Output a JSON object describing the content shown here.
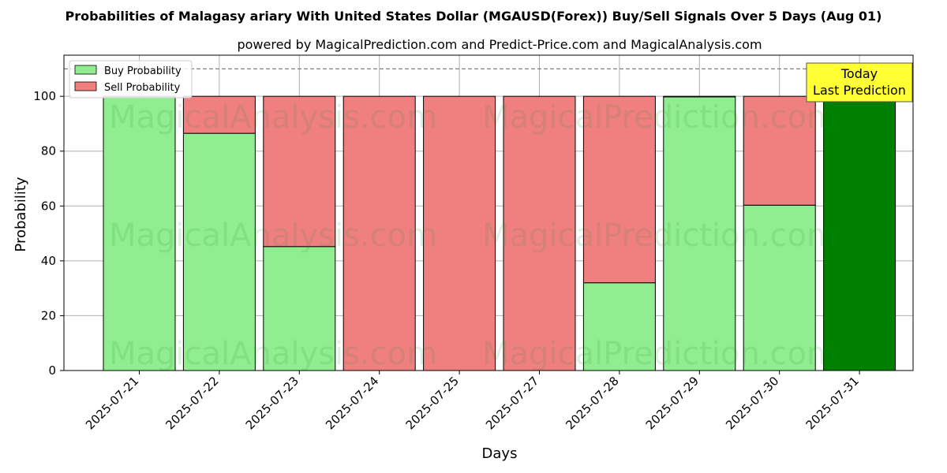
{
  "chart_data": {
    "type": "bar",
    "title": "Probabilities of Malagasy ariary With United States Dollar (MGAUSD(Forex)) Buy/Sell Signals Over 5 Days (Aug 01)",
    "subtitle": "powered by MagicalPrediction.com and Predict-Price.com and MagicalAnalysis.com",
    "xlabel": "Days",
    "ylabel": "Probability",
    "ylim": [
      0,
      115
    ],
    "yticks": [
      0,
      20,
      40,
      60,
      80,
      100
    ],
    "reference_line": 110,
    "grid": true,
    "legend_position": "top-left",
    "categories": [
      "2025-07-21",
      "2025-07-22",
      "2025-07-23",
      "2025-07-24",
      "2025-07-25",
      "2025-07-27",
      "2025-07-28",
      "2025-07-29",
      "2025-07-30",
      "2025-07-31"
    ],
    "series": [
      {
        "name": "Buy Probability",
        "color": "#90ee90",
        "values": [
          100,
          86.5,
          45.2,
          0,
          0,
          0,
          32,
          99.8,
          60.3,
          100
        ]
      },
      {
        "name": "Sell Probability",
        "color": "#f08080",
        "values": [
          0,
          13.5,
          54.8,
          100,
          100,
          100,
          68,
          0.2,
          39.7,
          0
        ]
      }
    ],
    "highlight": {
      "index": 9,
      "color": "#008000"
    },
    "annotation": {
      "line1": "Today",
      "line2": "Last Prediction",
      "bg": "#ffff33"
    },
    "watermarks": [
      "MagicalAnalysis.com",
      "MagicalPrediction.com"
    ]
  }
}
